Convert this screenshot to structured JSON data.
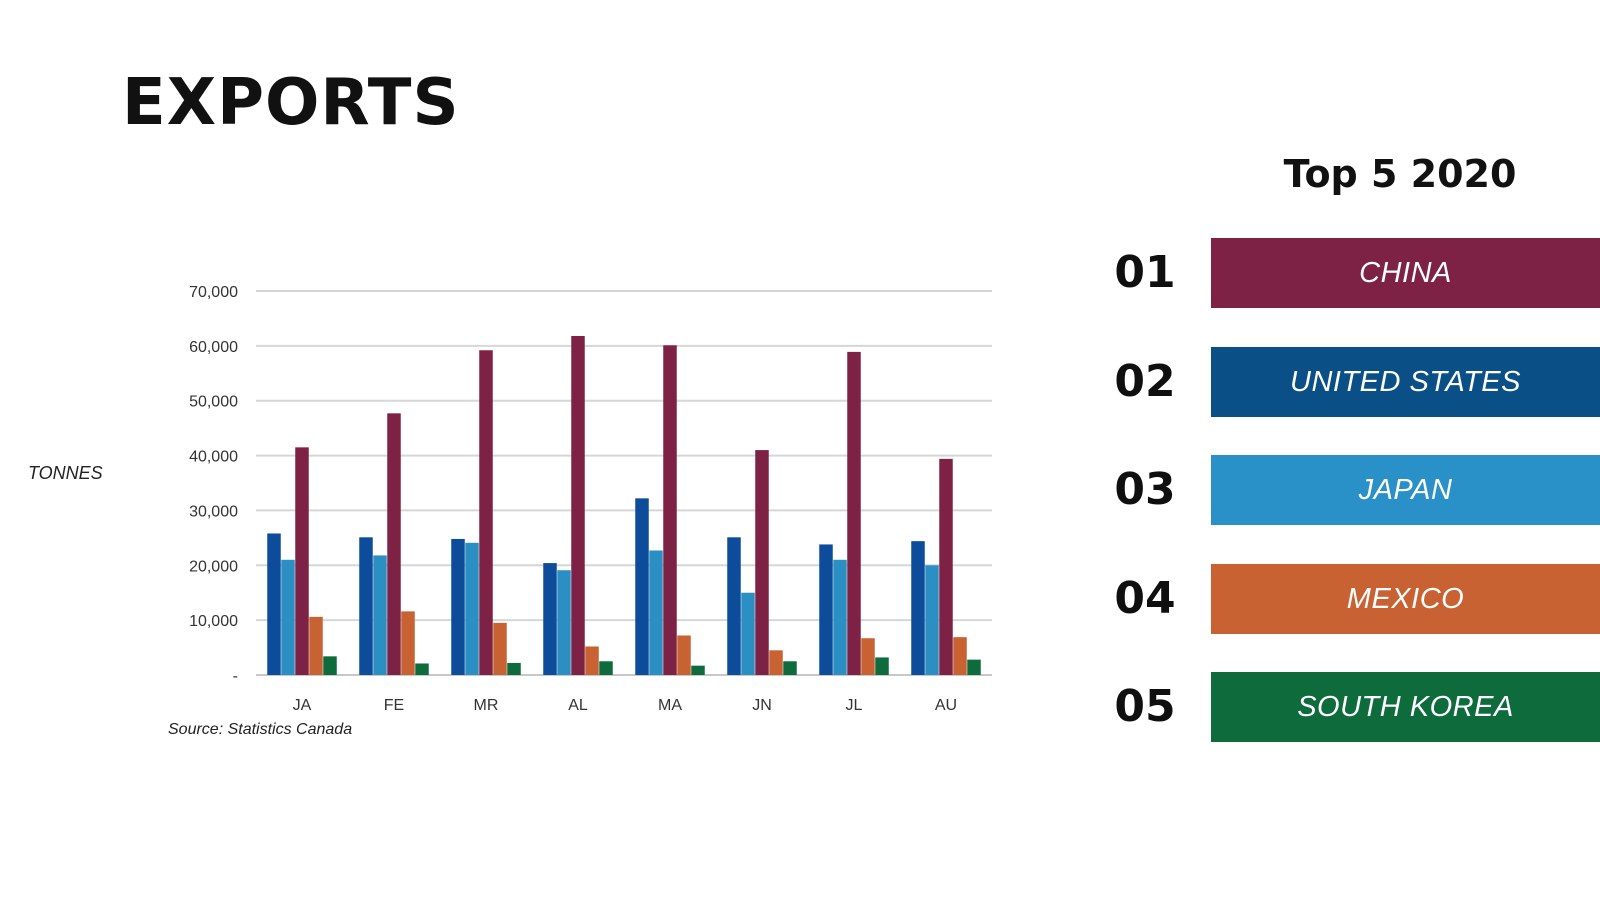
{
  "page": {
    "title": "EXPORTS",
    "y_axis_title": "TONNES",
    "source": "Source: Statistics Canada"
  },
  "top5": {
    "title": "Top 5 2020",
    "items": [
      {
        "rank": "01",
        "country": "CHINA",
        "color": "#7e2245"
      },
      {
        "rank": "02",
        "country": "UNITED STATES",
        "color": "#0a4f86"
      },
      {
        "rank": "03",
        "country": "JAPAN",
        "color": "#2990c8"
      },
      {
        "rank": "04",
        "country": "MEXICO",
        "color": "#c96232"
      },
      {
        "rank": "05",
        "country": "SOUTH KOREA",
        "color": "#0d6b3c"
      }
    ]
  },
  "chart_data": {
    "type": "bar",
    "categories": [
      "JA",
      "FE",
      "MR",
      "AL",
      "MA",
      "JN",
      "JL",
      "AU"
    ],
    "ylim": [
      0,
      70000
    ],
    "y_ticks": [
      {
        "value": 0,
        "label": "-"
      },
      {
        "value": 10000,
        "label": "10,000"
      },
      {
        "value": 20000,
        "label": "20,000"
      },
      {
        "value": 30000,
        "label": "30,000"
      },
      {
        "value": 40000,
        "label": "40,000"
      },
      {
        "value": 50000,
        "label": "50,000"
      },
      {
        "value": 60000,
        "label": "60,000"
      },
      {
        "value": 70000,
        "label": "70,000"
      }
    ],
    "ylabel": "TONNES",
    "grid": true,
    "legend": "none",
    "series": [
      {
        "color": "#0d4c9a",
        "values": [
          25800,
          25100,
          24800,
          20400,
          32200,
          25100,
          23800,
          24400
        ]
      },
      {
        "color": "#2b8fc4",
        "values": [
          21000,
          21800,
          24100,
          19100,
          22700,
          15000,
          21000,
          20000
        ]
      },
      {
        "color": "#7e2245",
        "values": [
          41500,
          47700,
          59200,
          61800,
          60100,
          41000,
          58900,
          39400
        ]
      },
      {
        "color": "#c96232",
        "values": [
          10600,
          11600,
          9500,
          5200,
          7200,
          4500,
          6700,
          6900
        ]
      },
      {
        "color": "#0d6b3c",
        "values": [
          3400,
          2100,
          2200,
          2500,
          1700,
          2500,
          3200,
          2800
        ]
      }
    ]
  }
}
